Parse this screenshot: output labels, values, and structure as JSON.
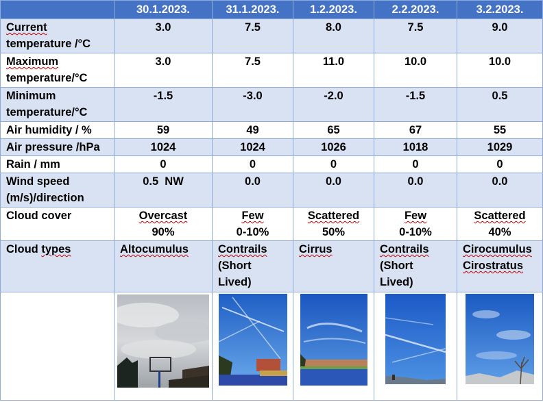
{
  "header": {
    "dates": [
      "30.1.2023.",
      "31.1.2023.",
      "1.2.2023.",
      "2.2.2023.",
      "3.2.2023."
    ]
  },
  "rows": {
    "current_temp": {
      "label1": "Current",
      "label2": "temperature /°C",
      "values": [
        "3.0",
        "7.5",
        "8.0",
        "7.5",
        "9.0"
      ]
    },
    "max_temp": {
      "label1": "Maximum",
      "label2": "temperature/°C",
      "values": [
        "3.0",
        "7.5",
        "11.0",
        "10.0",
        "10.0"
      ]
    },
    "min_temp": {
      "label1": "Minimum",
      "label2": "temperature/°C",
      "values": [
        "-1.5",
        "-3.0",
        "-2.0",
        "-1.5",
        "0.5"
      ]
    },
    "humidity": {
      "label": "Air humidity / %",
      "values": [
        "59",
        "49",
        "65",
        "67",
        "55"
      ]
    },
    "pressure": {
      "label": "Air pressure /hPa",
      "values": [
        "1024",
        "1024",
        "1026",
        "1018",
        "1029"
      ]
    },
    "rain": {
      "label": "Rain / mm",
      "values": [
        "0",
        "0",
        "0",
        "0",
        "0"
      ]
    },
    "wind": {
      "label1": "Wind speed",
      "label2": "(m/s)/direction",
      "values": [
        "0.5  NW",
        "0.0",
        "0.0",
        "0.0",
        "0.0"
      ]
    },
    "cloud_cover": {
      "label": "Cloud cover",
      "values": [
        {
          "name": "Overcast",
          "pct": "90%"
        },
        {
          "name": "Few",
          "pct": "0-10%"
        },
        {
          "name": "Scattered",
          "pct": "50%"
        },
        {
          "name": "Few",
          "pct": "0-10%"
        },
        {
          "name": "Scattered",
          "pct": "40%"
        }
      ]
    },
    "cloud_types": {
      "label": "Cloud types",
      "values": [
        {
          "l1": "Altocumulus",
          "l2": "",
          "l3": ""
        },
        {
          "l1": "Contrails",
          "l2": "(Short",
          "l3": "Lived)"
        },
        {
          "l1": "Cirrus",
          "l2": "",
          "l3": ""
        },
        {
          "l1": "Contrails",
          "l2": "(Short",
          "l3": "Lived)"
        },
        {
          "l1": "Cirocumulus",
          "l2": "Cirostratus",
          "l3": ""
        }
      ]
    }
  },
  "colors": {
    "header_bg": "#4472c4",
    "band_bg": "#d9e2f3",
    "border": "#8eaadb",
    "squiggle": "#c00000"
  },
  "photos": [
    "overcast-sky-photo",
    "contrails-sky-photo",
    "cirrus-sky-photo",
    "contrails-sky-photo",
    "cirrocumulus-sky-photo"
  ]
}
